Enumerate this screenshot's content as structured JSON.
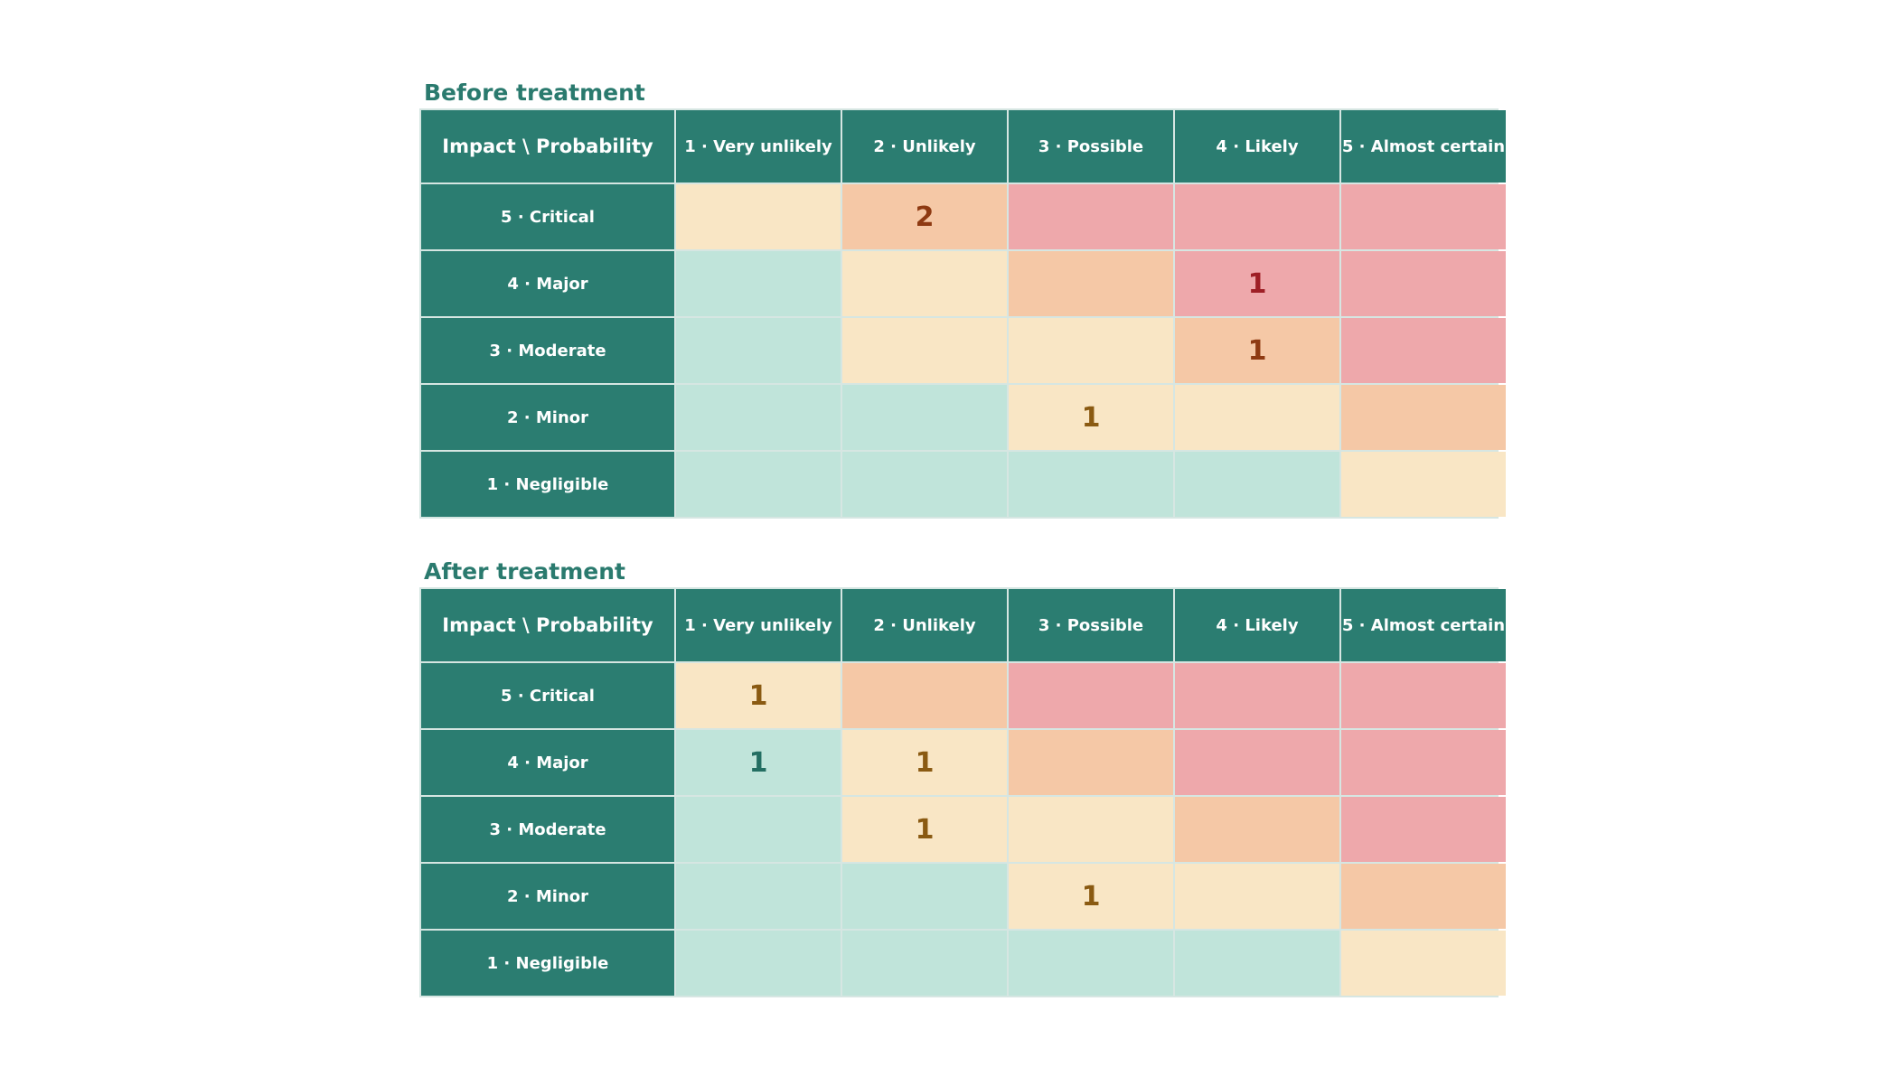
{
  "colors": {
    "header": "#2b7d71",
    "title": "#2a7a6e",
    "low": "#c0e4da",
    "medium": "#f9e6c5",
    "high": "#f5c8a6",
    "critical": "#eea8ab"
  },
  "matrices": [
    {
      "title": "Before treatment",
      "corner": "Impact \\ Probability",
      "columns": [
        "1 · Very unlikely",
        "2 · Unlikely",
        "3 · Possible",
        "4 · Likely",
        "5 · Almost certain"
      ],
      "rows": [
        {
          "label": "5 · Critical",
          "levels": [
            "med",
            "high",
            "crit",
            "crit",
            "crit"
          ],
          "counts": [
            "",
            "2",
            "",
            "",
            ""
          ]
        },
        {
          "label": "4 · Major",
          "levels": [
            "low",
            "med",
            "high",
            "crit",
            "crit"
          ],
          "counts": [
            "",
            "",
            "",
            "1",
            ""
          ]
        },
        {
          "label": "3 · Moderate",
          "levels": [
            "low",
            "med",
            "med",
            "high",
            "crit"
          ],
          "counts": [
            "",
            "",
            "",
            "1",
            ""
          ]
        },
        {
          "label": "2 · Minor",
          "levels": [
            "low",
            "low",
            "med",
            "med",
            "high"
          ],
          "counts": [
            "",
            "",
            "1",
            "",
            ""
          ]
        },
        {
          "label": "1 · Negligible",
          "levels": [
            "low",
            "low",
            "low",
            "low",
            "med"
          ],
          "counts": [
            "",
            "",
            "",
            "",
            ""
          ]
        }
      ]
    },
    {
      "title": "After treatment",
      "corner": "Impact \\ Probability",
      "columns": [
        "1 · Very unlikely",
        "2 · Unlikely",
        "3 · Possible",
        "4 · Likely",
        "5 · Almost certain"
      ],
      "rows": [
        {
          "label": "5 · Critical",
          "levels": [
            "med",
            "high",
            "crit",
            "crit",
            "crit"
          ],
          "counts": [
            "1",
            "",
            "",
            "",
            ""
          ]
        },
        {
          "label": "4 · Major",
          "levels": [
            "low",
            "med",
            "high",
            "crit",
            "crit"
          ],
          "counts": [
            "1",
            "1",
            "",
            "",
            ""
          ]
        },
        {
          "label": "3 · Moderate",
          "levels": [
            "low",
            "med",
            "med",
            "high",
            "crit"
          ],
          "counts": [
            "",
            "1",
            "",
            "",
            ""
          ]
        },
        {
          "label": "2 · Minor",
          "levels": [
            "low",
            "low",
            "med",
            "med",
            "high"
          ],
          "counts": [
            "",
            "",
            "1",
            "",
            ""
          ]
        },
        {
          "label": "1 · Negligible",
          "levels": [
            "low",
            "low",
            "low",
            "low",
            "med"
          ],
          "counts": [
            "",
            "",
            "",
            "",
            ""
          ]
        }
      ]
    }
  ],
  "chart_data": [
    {
      "type": "heatmap",
      "title": "Before treatment",
      "xlabel": "Probability",
      "ylabel": "Impact",
      "x": [
        "1 · Very unlikely",
        "2 · Unlikely",
        "3 · Possible",
        "4 · Likely",
        "5 · Almost certain"
      ],
      "y": [
        "5 · Critical",
        "4 · Major",
        "3 · Moderate",
        "2 · Minor",
        "1 · Negligible"
      ],
      "values": [
        [
          0,
          2,
          0,
          0,
          0
        ],
        [
          0,
          0,
          0,
          1,
          0
        ],
        [
          0,
          0,
          0,
          1,
          0
        ],
        [
          0,
          0,
          1,
          0,
          0
        ],
        [
          0,
          0,
          0,
          0,
          0
        ]
      ]
    },
    {
      "type": "heatmap",
      "title": "After treatment",
      "xlabel": "Probability",
      "ylabel": "Impact",
      "x": [
        "1 · Very unlikely",
        "2 · Unlikely",
        "3 · Possible",
        "4 · Likely",
        "5 · Almost certain"
      ],
      "y": [
        "5 · Critical",
        "4 · Major",
        "3 · Moderate",
        "2 · Minor",
        "1 · Negligible"
      ],
      "values": [
        [
          1,
          0,
          0,
          0,
          0
        ],
        [
          1,
          1,
          0,
          0,
          0
        ],
        [
          0,
          1,
          0,
          0,
          0
        ],
        [
          0,
          0,
          1,
          0,
          0
        ],
        [
          0,
          0,
          0,
          0,
          0
        ]
      ]
    }
  ]
}
